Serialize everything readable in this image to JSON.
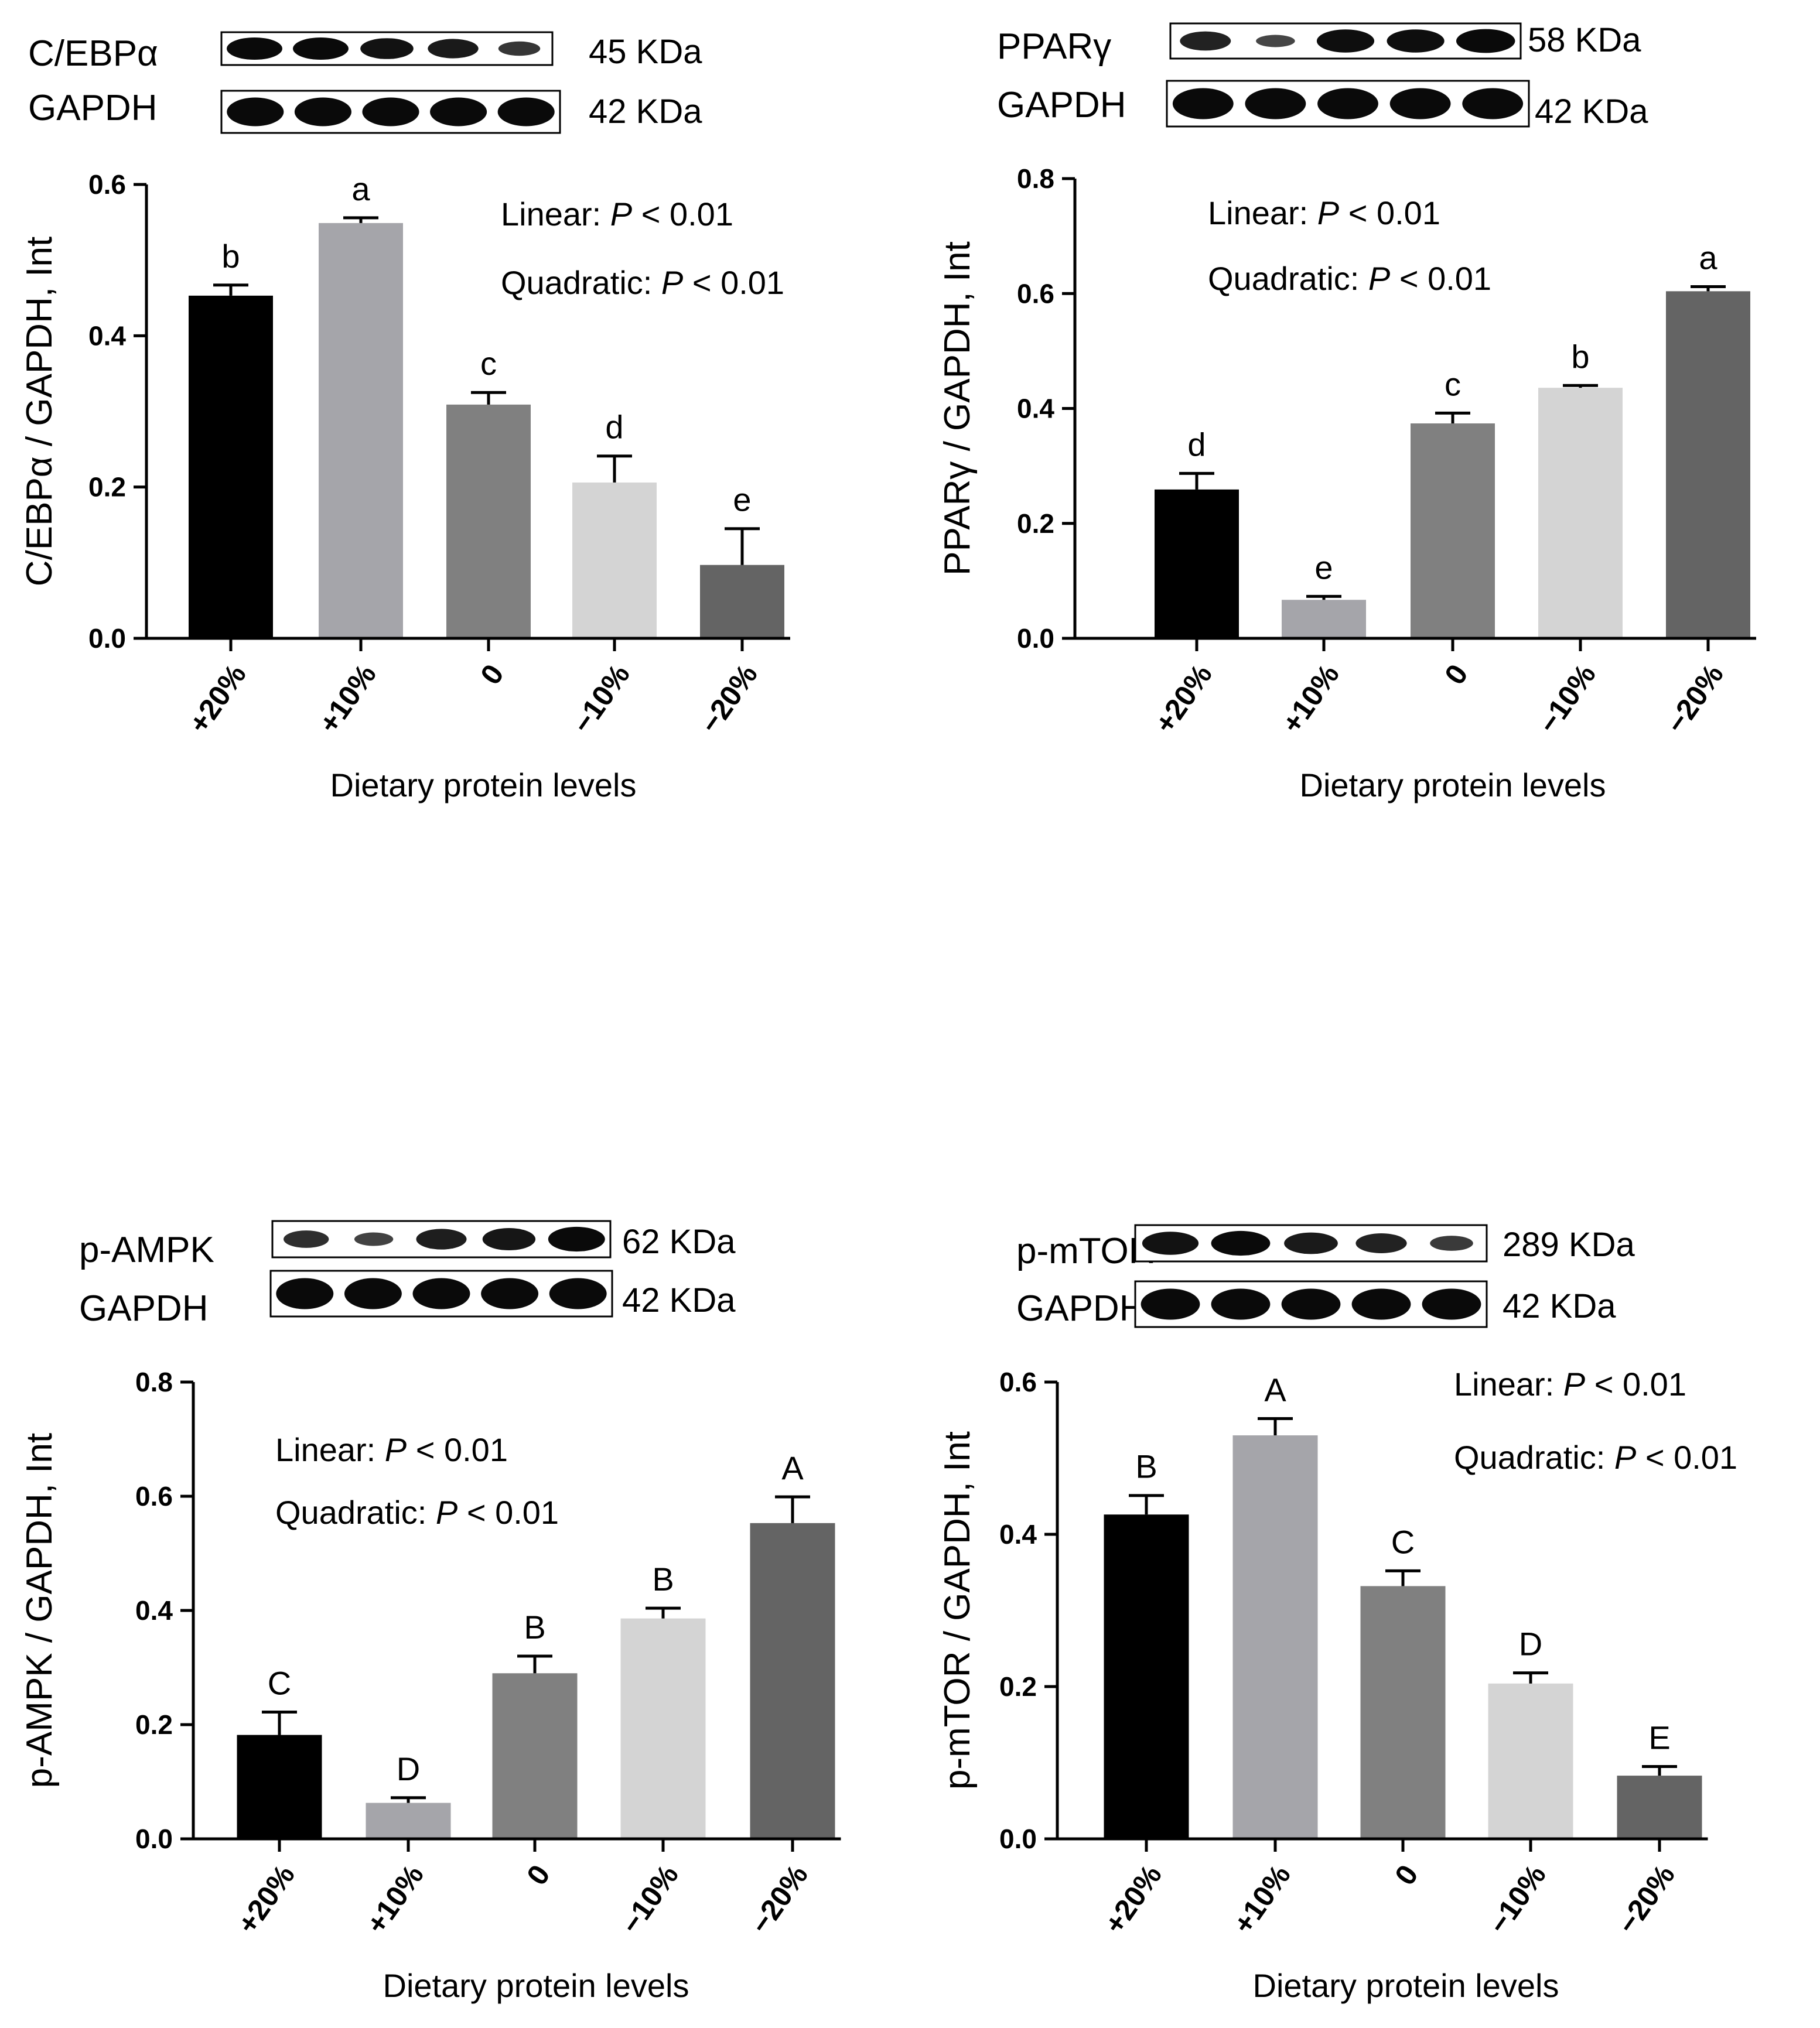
{
  "chart_data": [
    {
      "type": "bar",
      "ylabel": "C/EBPα / GAPDH, Int",
      "xlabel": "Dietary protein levels",
      "categories": [
        "+20%",
        "+10%",
        "0",
        "−10%",
        "−20%"
      ],
      "values": [
        0.453,
        0.549,
        0.309,
        0.206,
        0.097
      ],
      "errors": [
        0.014,
        0.007,
        0.016,
        0.035,
        0.048
      ],
      "letters": [
        "b",
        "a",
        "c",
        "d",
        "e"
      ],
      "colors": [
        "#000000",
        "#a5a5aa",
        "#808080",
        "#d4d4d4",
        "#646464"
      ],
      "ylim": [
        0,
        0.6
      ],
      "yticks": [
        "0.0",
        "0.2",
        "0.4",
        "0.6"
      ],
      "stats": {
        "linear_label": "Linear: ",
        "linear_p": "P",
        "linear_val": " < 0.01",
        "quad_label": "Quadratic: ",
        "quad_p": "P",
        "quad_val": " < 0.01"
      },
      "blot": {
        "protein": "C/EBPα",
        "protein_kda": "45 KDa",
        "reference": "GAPDH",
        "reference_kda": "42 KDa"
      }
    },
    {
      "type": "bar",
      "ylabel": "PPARγ / GAPDH, Int",
      "xlabel": "Dietary protein levels",
      "categories": [
        "+20%",
        "+10%",
        "0",
        "−10%",
        "−20%"
      ],
      "values": [
        0.259,
        0.067,
        0.374,
        0.436,
        0.604
      ],
      "errors": [
        0.028,
        0.006,
        0.018,
        0.004,
        0.008
      ],
      "letters": [
        "d",
        "e",
        "c",
        "b",
        "a"
      ],
      "colors": [
        "#000000",
        "#a5a5aa",
        "#808080",
        "#d4d4d4",
        "#646464"
      ],
      "ylim": [
        0,
        0.8
      ],
      "yticks": [
        "0.0",
        "0.2",
        "0.4",
        "0.6",
        "0.8"
      ],
      "stats": {
        "linear_label": "Linear: ",
        "linear_p": "P",
        "linear_val": " < 0.01",
        "quad_label": "Quadratic: ",
        "quad_p": "P",
        "quad_val": " < 0.01"
      },
      "blot": {
        "protein": "PPARγ",
        "protein_kda": "58 KDa",
        "reference": "GAPDH",
        "reference_kda": "42 KDa"
      }
    },
    {
      "type": "bar",
      "ylabel": "p-AMPK / GAPDH, Int",
      "xlabel": "Dietary protein levels",
      "categories": [
        "+20%",
        "+10%",
        "0",
        "−10%",
        "−20%"
      ],
      "values": [
        0.182,
        0.063,
        0.29,
        0.386,
        0.553
      ],
      "errors": [
        0.04,
        0.009,
        0.03,
        0.018,
        0.046
      ],
      "letters": [
        "C",
        "D",
        "B",
        "B",
        "A"
      ],
      "colors": [
        "#000000",
        "#a5a5aa",
        "#808080",
        "#d4d4d4",
        "#646464"
      ],
      "ylim": [
        0,
        0.8
      ],
      "yticks": [
        "0.0",
        "0.2",
        "0.4",
        "0.6",
        "0.8"
      ],
      "stats": {
        "linear_label": "Linear: ",
        "linear_p": "P",
        "linear_val": " < 0.01",
        "quad_label": "Quadratic: ",
        "quad_p": "P",
        "quad_val": " < 0.01"
      },
      "blot": {
        "protein": "p-AMPK",
        "protein_kda": "62 KDa",
        "reference": "GAPDH",
        "reference_kda": "42 KDa"
      }
    },
    {
      "type": "bar",
      "ylabel": "p-mTOR / GAPDH, Int",
      "xlabel": "Dietary protein levels",
      "categories": [
        "+20%",
        "+10%",
        "0",
        "−10%",
        "−20%"
      ],
      "values": [
        0.426,
        0.53,
        0.332,
        0.204,
        0.083
      ],
      "errors": [
        0.025,
        0.022,
        0.02,
        0.014,
        0.012
      ],
      "letters": [
        "B",
        "A",
        "C",
        "D",
        "E"
      ],
      "colors": [
        "#000000",
        "#a5a5aa",
        "#808080",
        "#d4d4d4",
        "#646464"
      ],
      "ylim": [
        0,
        0.6
      ],
      "yticks": [
        "0.0",
        "0.2",
        "0.4",
        "0.6"
      ],
      "stats": {
        "linear_label": "Linear: ",
        "linear_p": "P",
        "linear_val": " < 0.01",
        "quad_label": "Quadratic: ",
        "quad_p": "P",
        "quad_val": " < 0.01"
      },
      "blot": {
        "protein": "p-mTOR",
        "protein_kda": "289 KDa",
        "reference": "GAPDH",
        "reference_kda": "42 KDa"
      }
    }
  ]
}
